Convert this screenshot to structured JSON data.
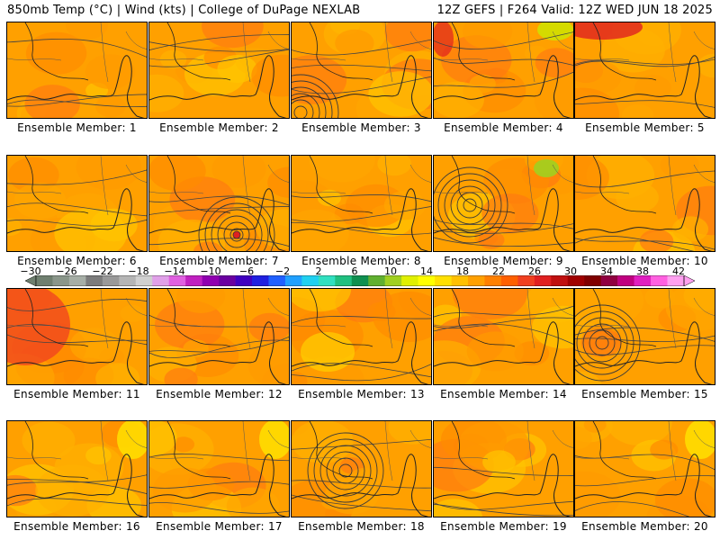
{
  "header": {
    "left": "850mb Temp (°C) | Wind (kts) | College of DuPage NEXLAB",
    "right": "12Z GEFS | F264 Valid: 12Z WED JUN 18 2025"
  },
  "panels": [
    {
      "label": "Ensemble Member: 1"
    },
    {
      "label": "Ensemble Member: 2"
    },
    {
      "label": "Ensemble Member: 3"
    },
    {
      "label": "Ensemble Member: 4"
    },
    {
      "label": "Ensemble Member: 5"
    },
    {
      "label": "Ensemble Member: 6"
    },
    {
      "label": "Ensemble Member: 7"
    },
    {
      "label": "Ensemble Member: 8"
    },
    {
      "label": "Ensemble Member: 9"
    },
    {
      "label": "Ensemble Member: 10"
    },
    {
      "label": "Ensemble Member: 11"
    },
    {
      "label": "Ensemble Member: 12"
    },
    {
      "label": "Ensemble Member: 13"
    },
    {
      "label": "Ensemble Member: 14"
    },
    {
      "label": "Ensemble Member: 15"
    },
    {
      "label": "Ensemble Member: 16"
    },
    {
      "label": "Ensemble Member: 17"
    },
    {
      "label": "Ensemble Member: 18"
    },
    {
      "label": "Ensemble Member: 19"
    },
    {
      "label": "Ensemble Member: 20"
    }
  ],
  "colorbar": {
    "ticks": [
      "−30",
      "−26",
      "−22",
      "−18",
      "−14",
      "−10",
      "−6",
      "−2",
      "2",
      "6",
      "10",
      "14",
      "18",
      "22",
      "26",
      "30",
      "34",
      "38",
      "42"
    ],
    "colors": [
      "#6f7f6f",
      "#8a968a",
      "#a6aea6",
      "#7c7c7c",
      "#999999",
      "#b5b5b5",
      "#d0d0d0",
      "#e0a0e8",
      "#e060e0",
      "#c020c0",
      "#9000b0",
      "#6a00a0",
      "#4000c0",
      "#2020e0",
      "#2060ff",
      "#20a0ff",
      "#20d0f0",
      "#30e0c0",
      "#20c080",
      "#109050",
      "#60b030",
      "#a0d020",
      "#e0f000",
      "#ffff00",
      "#ffe000",
      "#ffc000",
      "#ffa000",
      "#ff8000",
      "#ff6000",
      "#f04020",
      "#e02020",
      "#c01010",
      "#a00000",
      "#800000",
      "#900040",
      "#c00080",
      "#e020c0",
      "#ff60e0",
      "#ffa0f0"
    ]
  }
}
